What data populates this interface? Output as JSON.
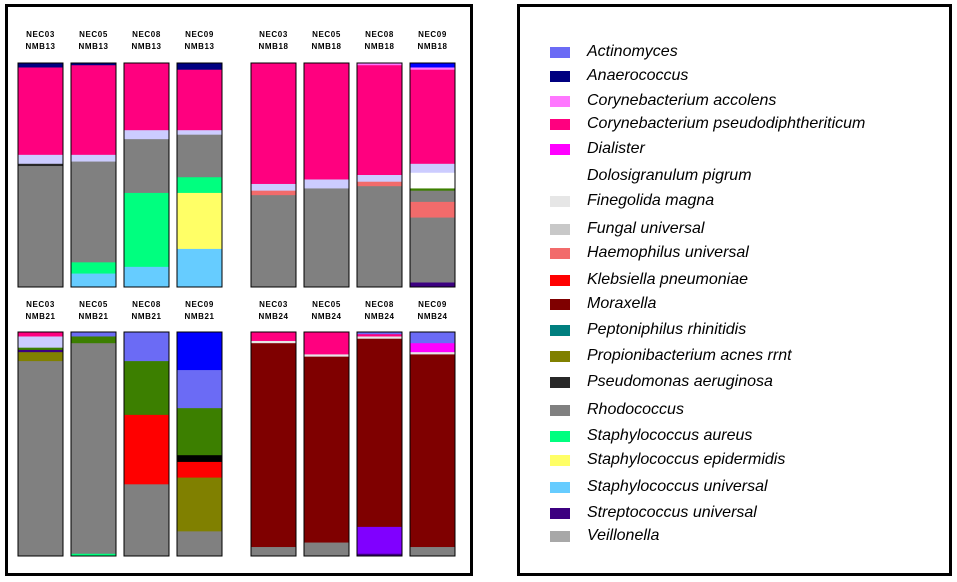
{
  "colors": {
    "Actinomyces": "#6b6bf5",
    "Anaerococcus": "#000080",
    "Corynebacterium accolens": "#ff77ff",
    "Corynebacterium pseudodiphtheriticum": "#ff007f",
    "Dialister": "#ff00ff",
    "Dolosigranulum pigrum": "#ffffff",
    "Finegolida magna": "#e6e6e6",
    "Fungal universal": "#c8c8c8",
    "Haemophilus universal": "#f26b6b",
    "Klebsiella pneumoniae": "#ff0000",
    "Moraxella": "#7f0000",
    "Peptoniphilus rhinitidis": "#007f7f",
    "Propionibacterium acnes rrnt": "#808000",
    "Pseudomonas aeruginosa": "#282828",
    "Rhodococcus": "#808080",
    "Staphylococcus aureus": "#00ff7f",
    "Staphylococcus epidermidis": "#ffff66",
    "Staphylococcus universal": "#66ccff",
    "Streptococcus universal": "#3c0080",
    "Veillonella": "#a8a8a8",
    "Lavender band": "#ccccff",
    "Green": "#3c7f00",
    "Blue": "#0000ff",
    "Violet": "#8000ff",
    "Black": "#000000"
  },
  "legend": [
    {
      "name": "Actinomyces"
    },
    {
      "name": "Anaerococcus"
    },
    {
      "name": "Corynebacterium accolens"
    },
    {
      "name": "Corynebacterium pseudodiphtheriticum"
    },
    {
      "name": "Dialister"
    },
    {
      "name": "Dolosigranulum pigrum"
    },
    {
      "name": "Finegolida magna"
    },
    {
      "name": "Fungal universal"
    },
    {
      "name": "Haemophilus universal"
    },
    {
      "name": "Klebsiella pneumoniae"
    },
    {
      "name": "Moraxella"
    },
    {
      "name": "Peptoniphilus rhinitidis"
    },
    {
      "name": "Propionibacterium acnes rrnt"
    },
    {
      "name": "Pseudomonas aeruginosa"
    },
    {
      "name": "Rhodococcus"
    },
    {
      "name": "Staphylococcus aureus"
    },
    {
      "name": "Staphylococcus epidermidis"
    },
    {
      "name": "Staphylococcus universal"
    },
    {
      "name": "Streptococcus universal"
    },
    {
      "name": "Veillonella"
    }
  ],
  "chart_data": {
    "type": "bar",
    "stacked": true,
    "normalized": true,
    "ylim": [
      0,
      100
    ],
    "groups": [
      {
        "name": "NMB13",
        "stacks": [
          {
            "line1": "NEC03",
            "line2": "NMB13",
            "segments": [
              {
                "taxon": "Anaerococcus",
                "value": 2
              },
              {
                "taxon": "Corynebacterium pseudodiphtheriticum",
                "value": 39
              },
              {
                "taxon": "Lavender band",
                "value": 4
              },
              {
                "taxon": "Pseudomonas aeruginosa",
                "value": 1
              },
              {
                "taxon": "Rhodococcus",
                "value": 54
              }
            ]
          },
          {
            "line1": "NEC05",
            "line2": "NMB13",
            "segments": [
              {
                "taxon": "Anaerococcus",
                "value": 1
              },
              {
                "taxon": "Corynebacterium pseudodiphtheriticum",
                "value": 40
              },
              {
                "taxon": "Lavender band",
                "value": 3
              },
              {
                "taxon": "Rhodococcus",
                "value": 45
              },
              {
                "taxon": "Staphylococcus aureus",
                "value": 5
              },
              {
                "taxon": "Staphylococcus universal",
                "value": 6
              }
            ]
          },
          {
            "line1": "NEC08",
            "line2": "NMB13",
            "segments": [
              {
                "taxon": "Corynebacterium pseudodiphtheriticum",
                "value": 30
              },
              {
                "taxon": "Lavender band",
                "value": 4
              },
              {
                "taxon": "Rhodococcus",
                "value": 24
              },
              {
                "taxon": "Staphylococcus aureus",
                "value": 33
              },
              {
                "taxon": "Staphylococcus universal",
                "value": 9
              }
            ]
          },
          {
            "line1": "NEC09",
            "line2": "NMB13",
            "segments": [
              {
                "taxon": "Anaerococcus",
                "value": 3
              },
              {
                "taxon": "Corynebacterium pseudodiphtheriticum",
                "value": 27
              },
              {
                "taxon": "Lavender band",
                "value": 2
              },
              {
                "taxon": "Rhodococcus",
                "value": 19
              },
              {
                "taxon": "Staphylococcus aureus",
                "value": 7
              },
              {
                "taxon": "Staphylococcus epidermidis",
                "value": 25
              },
              {
                "taxon": "Staphylococcus universal",
                "value": 17
              }
            ]
          }
        ]
      },
      {
        "name": "NMB18",
        "stacks": [
          {
            "line1": "NEC03",
            "line2": "NMB18",
            "segments": [
              {
                "taxon": "Corynebacterium pseudodiphtheriticum",
                "value": 54
              },
              {
                "taxon": "Lavender band",
                "value": 3
              },
              {
                "taxon": "Haemophilus universal",
                "value": 2
              },
              {
                "taxon": "Rhodococcus",
                "value": 41
              }
            ]
          },
          {
            "line1": "NEC05",
            "line2": "NMB18",
            "segments": [
              {
                "taxon": "Corynebacterium pseudodiphtheriticum",
                "value": 52
              },
              {
                "taxon": "Lavender band",
                "value": 4
              },
              {
                "taxon": "Rhodococcus",
                "value": 44
              }
            ]
          },
          {
            "line1": "NEC08",
            "line2": "NMB18",
            "segments": [
              {
                "taxon": "Corynebacterium accolens",
                "value": 1
              },
              {
                "taxon": "Corynebacterium pseudodiphtheriticum",
                "value": 49
              },
              {
                "taxon": "Lavender band",
                "value": 3
              },
              {
                "taxon": "Haemophilus universal",
                "value": 2
              },
              {
                "taxon": "Rhodococcus",
                "value": 45
              }
            ]
          },
          {
            "line1": "NEC09",
            "line2": "NMB18",
            "segments": [
              {
                "taxon": "Blue",
                "value": 2
              },
              {
                "taxon": "Corynebacterium accolens",
                "value": 1
              },
              {
                "taxon": "Corynebacterium pseudodiphtheriticum",
                "value": 42
              },
              {
                "taxon": "Lavender band",
                "value": 4
              },
              {
                "taxon": "Dolosigranulum pigrum",
                "value": 7
              },
              {
                "taxon": "Green",
                "value": 1
              },
              {
                "taxon": "Rhodococcus",
                "value": 5
              },
              {
                "taxon": "Haemophilus universal",
                "value": 7
              },
              {
                "taxon": "Rhodococcus",
                "value": 29
              },
              {
                "taxon": "Streptococcus universal",
                "value": 2
              }
            ]
          }
        ]
      },
      {
        "name": "NMB21",
        "stacks": [
          {
            "line1": "NEC03",
            "line2": "NMB21",
            "segments": [
              {
                "taxon": "Corynebacterium pseudodiphtheriticum",
                "value": 2
              },
              {
                "taxon": "Lavender band",
                "value": 5
              },
              {
                "taxon": "Green",
                "value": 1
              },
              {
                "taxon": "Streptococcus universal",
                "value": 1
              },
              {
                "taxon": "Propionibacterium acnes rrnt",
                "value": 4
              },
              {
                "taxon": "Rhodococcus",
                "value": 87
              }
            ]
          },
          {
            "line1": "NEC05",
            "line2": "NMB21",
            "segments": [
              {
                "taxon": "Actinomyces",
                "value": 2
              },
              {
                "taxon": "Green",
                "value": 3
              },
              {
                "taxon": "Rhodococcus",
                "value": 94
              },
              {
                "taxon": "Staphylococcus aureus",
                "value": 1
              }
            ]
          },
          {
            "line1": "NEC08",
            "line2": "NMB21",
            "segments": [
              {
                "taxon": "Actinomyces",
                "value": 13
              },
              {
                "taxon": "Green",
                "value": 24
              },
              {
                "taxon": "Klebsiella pneumoniae",
                "value": 31
              },
              {
                "taxon": "Rhodococcus",
                "value": 32
              }
            ]
          },
          {
            "line1": "NEC09",
            "line2": "NMB21",
            "segments": [
              {
                "taxon": "Blue",
                "value": 17
              },
              {
                "taxon": "Actinomyces",
                "value": 17
              },
              {
                "taxon": "Green",
                "value": 21
              },
              {
                "taxon": "Black",
                "value": 3
              },
              {
                "taxon": "Klebsiella pneumoniae",
                "value": 7
              },
              {
                "taxon": "Propionibacterium acnes rrnt",
                "value": 24
              },
              {
                "taxon": "Rhodococcus",
                "value": 11
              }
            ]
          }
        ]
      },
      {
        "name": "NMB24",
        "stacks": [
          {
            "line1": "NEC03",
            "line2": "NMB24",
            "segments": [
              {
                "taxon": "Corynebacterium pseudodiphtheriticum",
                "value": 4
              },
              {
                "taxon": "Finegolida magna",
                "value": 1
              },
              {
                "taxon": "Moraxella",
                "value": 91
              },
              {
                "taxon": "Rhodococcus",
                "value": 4
              }
            ]
          },
          {
            "line1": "NEC05",
            "line2": "NMB24",
            "segments": [
              {
                "taxon": "Corynebacterium pseudodiphtheriticum",
                "value": 10
              },
              {
                "taxon": "Finegolida magna",
                "value": 1
              },
              {
                "taxon": "Moraxella",
                "value": 83
              },
              {
                "taxon": "Rhodococcus",
                "value": 6
              }
            ]
          },
          {
            "line1": "NEC08",
            "line2": "NMB24",
            "segments": [
              {
                "taxon": "Actinomyces",
                "value": 1
              },
              {
                "taxon": "Corynebacterium pseudodiphtheriticum",
                "value": 1
              },
              {
                "taxon": "Finegolida magna",
                "value": 1
              },
              {
                "taxon": "Moraxella",
                "value": 84
              },
              {
                "taxon": "Violet",
                "value": 12
              },
              {
                "taxon": "Streptococcus universal",
                "value": 1
              }
            ]
          },
          {
            "line1": "NEC09",
            "line2": "NMB24",
            "segments": [
              {
                "taxon": "Actinomyces",
                "value": 5
              },
              {
                "taxon": "Dialister",
                "value": 4
              },
              {
                "taxon": "Finegolida magna",
                "value": 1
              },
              {
                "taxon": "Moraxella",
                "value": 86
              },
              {
                "taxon": "Rhodococcus",
                "value": 4
              }
            ]
          }
        ]
      }
    ]
  }
}
